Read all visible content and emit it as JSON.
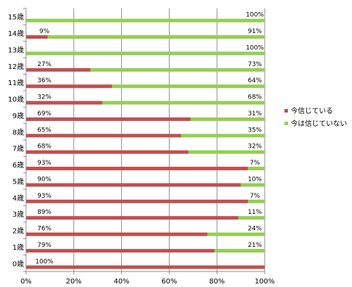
{
  "chart_data": {
    "type": "bar",
    "orientation": "horizontal",
    "stacked": true,
    "percent_stacked": true,
    "categories": [
      "0歳",
      "1歳",
      "2歳",
      "3歳",
      "4歳",
      "5歳",
      "6歳",
      "7歳",
      "8歳",
      "9歳",
      "10歳",
      "11歳",
      "12歳",
      "13歳",
      "14歳",
      "15歳"
    ],
    "series": [
      {
        "name": "今信じている",
        "color": "#C0504D",
        "values": [
          100,
          79,
          76,
          89,
          93,
          90,
          93,
          68,
          65,
          69,
          32,
          36,
          27,
          0,
          9,
          0
        ],
        "labels": [
          "100%",
          "79%",
          "76%",
          "89%",
          "93%",
          "90%",
          "93%",
          "68%",
          "65%",
          "69%",
          "32%",
          "36%",
          "27%",
          "",
          "9%",
          ""
        ]
      },
      {
        "name": "今は信じていない",
        "color": "#92D050",
        "values": [
          0,
          21,
          24,
          11,
          7,
          10,
          7,
          32,
          35,
          31,
          68,
          64,
          73,
          100,
          91,
          100
        ],
        "labels": [
          "",
          "21%",
          "24%",
          "11%",
          "7%",
          "10%",
          "7%",
          "32%",
          "35%",
          "31%",
          "68%",
          "64%",
          "73%",
          "100%",
          "91%",
          "100%"
        ]
      }
    ],
    "xaxis": {
      "ticks": [
        "0%",
        "20%",
        "40%",
        "60%",
        "80%",
        "100%"
      ],
      "range": [
        0,
        100
      ]
    },
    "grid": true,
    "legend": "right"
  }
}
